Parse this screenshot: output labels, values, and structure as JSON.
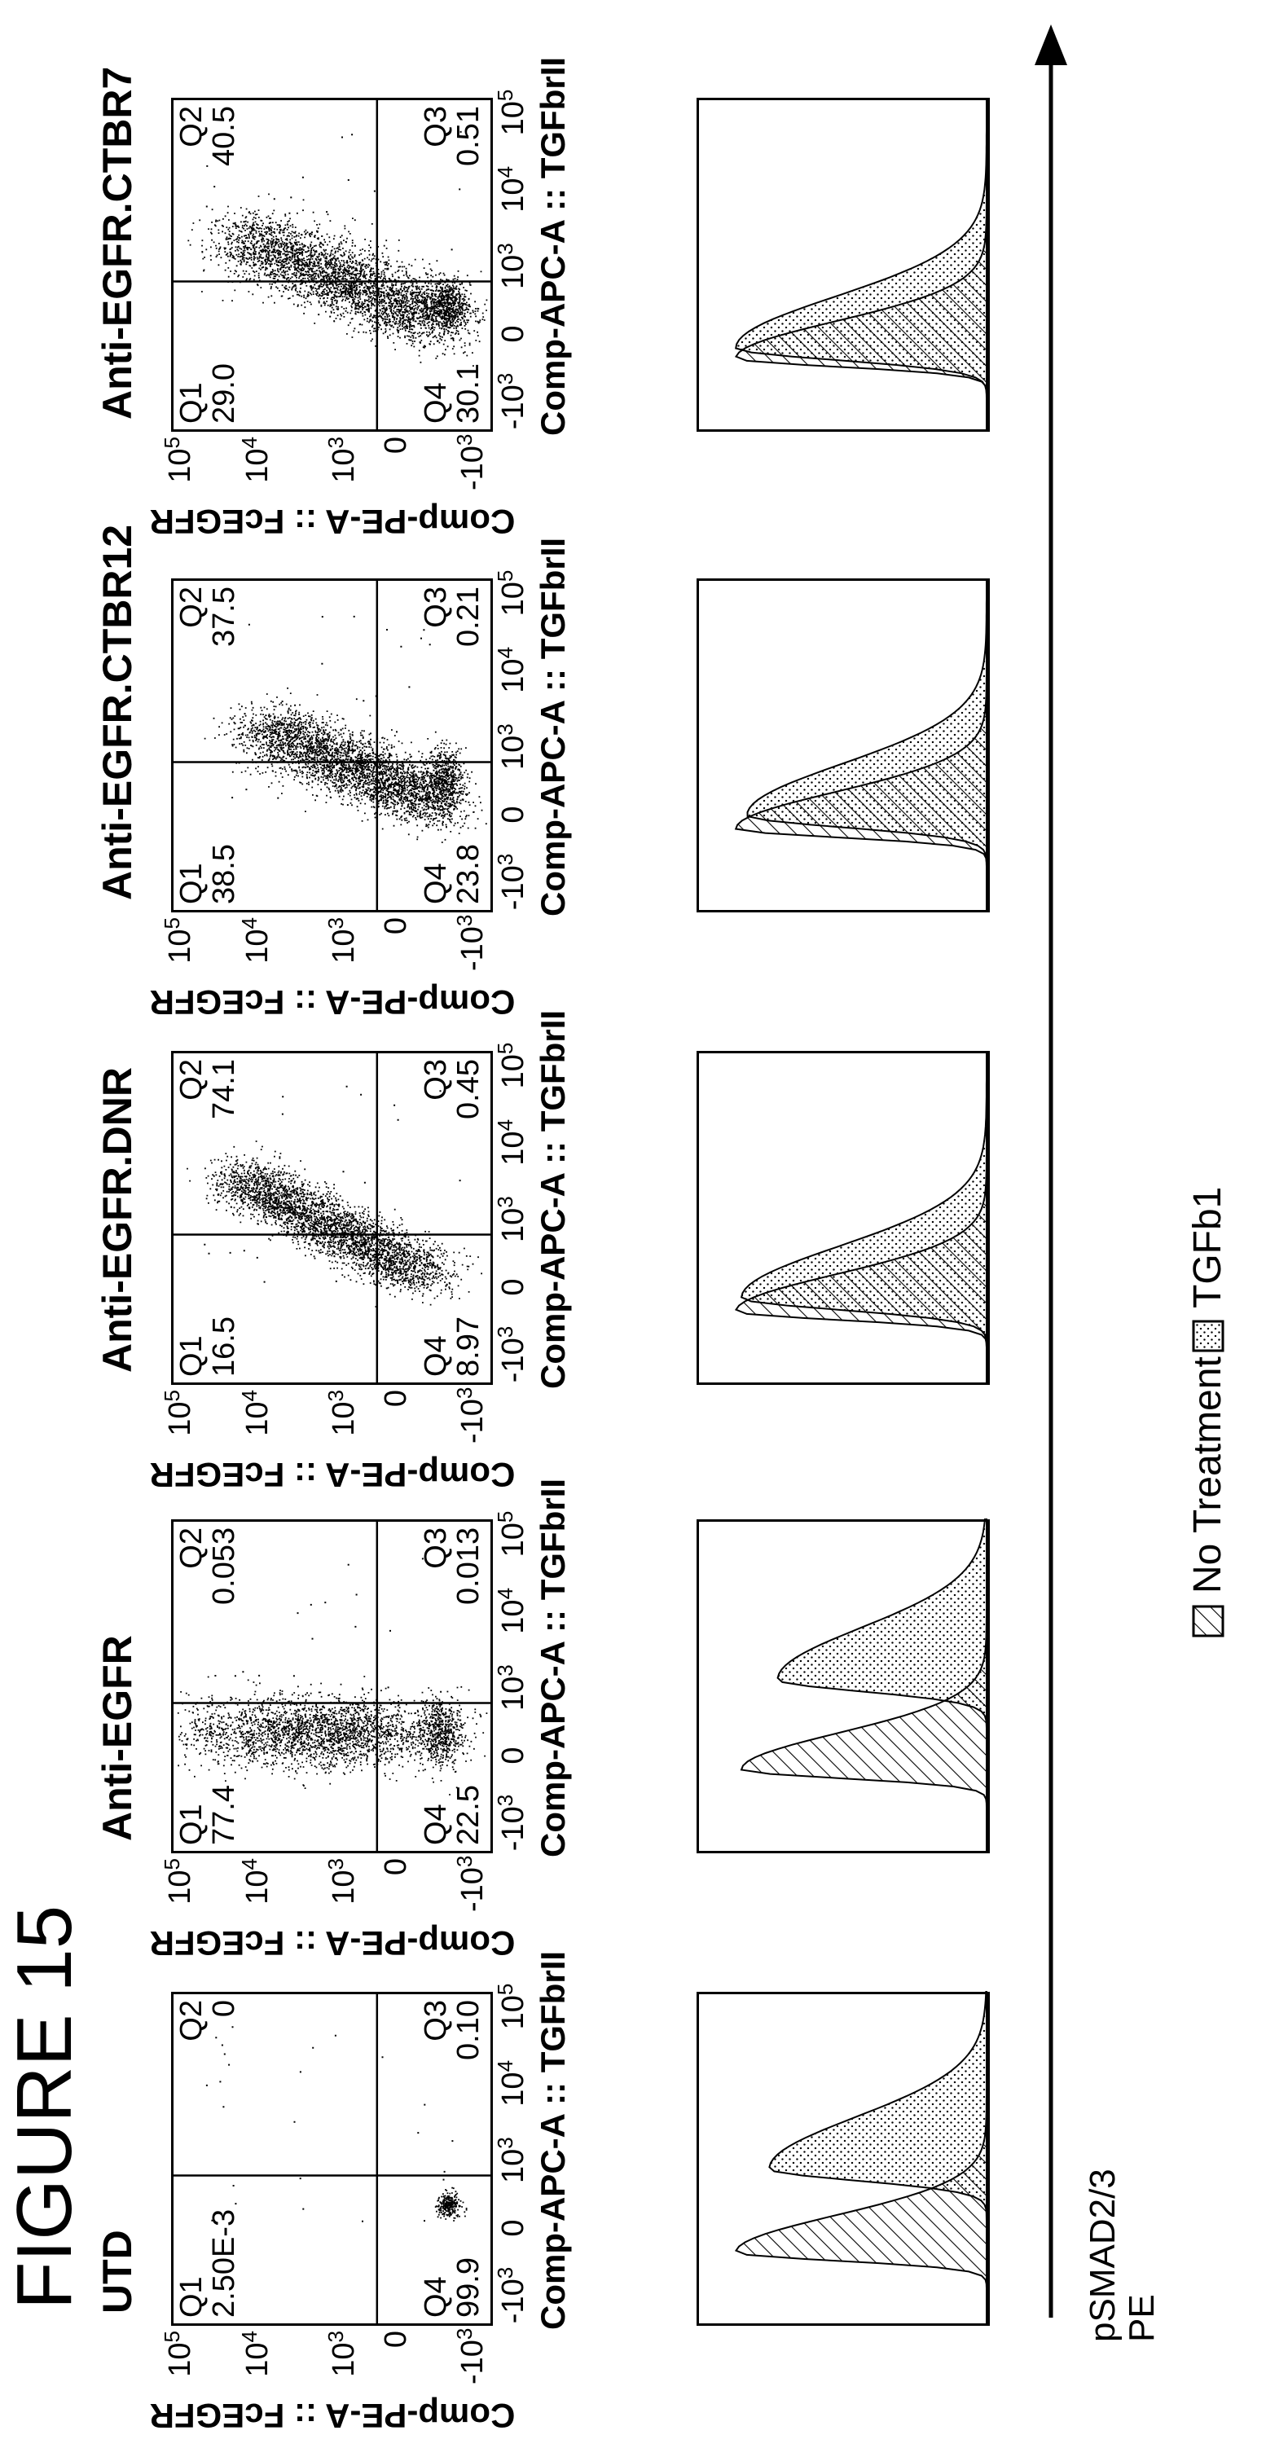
{
  "figure_title": "FIGURE 15",
  "conditions": [
    {
      "title": "UTD",
      "quadrants": {
        "q1_label": "Q1",
        "q1": "2.50E-3",
        "q2_label": "Q2",
        "q2": "0",
        "q3_label": "Q3",
        "q3": "0.10",
        "q4_label": "Q4",
        "q4": "99.9"
      }
    },
    {
      "title": "Anti-EGFR",
      "quadrants": {
        "q1_label": "Q1",
        "q1": "77.4",
        "q2_label": "Q2",
        "q2": "0.053",
        "q3_label": "Q3",
        "q3": "0.013",
        "q4_label": "Q4",
        "q4": "22.5"
      }
    },
    {
      "title": "Anti-EGFR.DNR",
      "quadrants": {
        "q1_label": "Q1",
        "q1": "16.5",
        "q2_label": "Q2",
        "q2": "74.1",
        "q3_label": "Q3",
        "q3": "0.45",
        "q4_label": "Q4",
        "q4": "8.97"
      }
    },
    {
      "title": "Anti-EGFR.CTBR12",
      "quadrants": {
        "q1_label": "Q1",
        "q1": "38.5",
        "q2_label": "Q2",
        "q2": "37.5",
        "q3_label": "Q3",
        "q3": "0.21",
        "q4_label": "Q4",
        "q4": "23.8"
      }
    },
    {
      "title": "Anti-EGFR.CTBR7",
      "quadrants": {
        "q1_label": "Q1",
        "q1": "29.0",
        "q2_label": "Q2",
        "q2": "40.5",
        "q3_label": "Q3",
        "q3": "0.51",
        "q4_label": "Q4",
        "q4": "30.1"
      }
    }
  ],
  "axes": {
    "x_label": "Comp-APC-A :: TGFbrII",
    "y_label": "Comp-PE-A :: FcEGFR",
    "tick_base": "10",
    "x_ticks": [
      {
        "base": "-10",
        "exp": "3"
      },
      {
        "base": "0",
        "exp": ""
      },
      {
        "base": "10",
        "exp": "3"
      },
      {
        "base": "10",
        "exp": "4"
      },
      {
        "base": "10",
        "exp": "5"
      }
    ],
    "y_ticks": [
      {
        "base": "10",
        "exp": "5"
      },
      {
        "base": "10",
        "exp": "4"
      },
      {
        "base": "10",
        "exp": "3"
      },
      {
        "base": "0",
        "exp": ""
      },
      {
        "base": "-10",
        "exp": "3"
      }
    ]
  },
  "histogram_axis_label_line1": "pSMAD2/3",
  "histogram_axis_label_line2": "PE",
  "legend": {
    "items": [
      {
        "label": "No Treatment",
        "pattern": "hatched"
      },
      {
        "label": "TGFb1",
        "pattern": "dotted"
      }
    ]
  }
}
